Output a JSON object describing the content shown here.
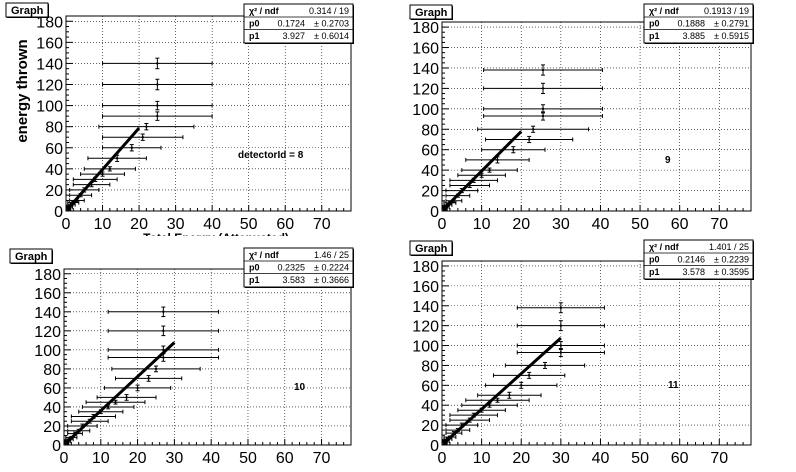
{
  "chart_data": [
    {
      "type": "scatter",
      "title": "Graph",
      "xlabel": "Total Energy (Attenuated)",
      "ylabel": "energy thrown",
      "xlim": [
        0,
        78
      ],
      "ylim": [
        0,
        185
      ],
      "xticks": [
        0,
        10,
        20,
        30,
        40,
        50,
        60,
        70
      ],
      "yticks": [
        0,
        20,
        40,
        60,
        80,
        100,
        120,
        140,
        160,
        180
      ],
      "grid": true,
      "annotation": "detectorId = 8",
      "stats": {
        "chi_label": "χ² / ndf",
        "chi_value": "0.314 / 19",
        "p0_label": "p0",
        "p0_value": "0.1724",
        "p0_err": "± 0.2703",
        "p1_label": "p1",
        "p1_value": "3.927",
        "p1_err": "± 0.6014"
      },
      "fit": {
        "p0": 0.1724,
        "p1": 3.927,
        "x_range": [
          0.5,
          20
        ]
      },
      "points": [
        {
          "x": 25,
          "y": 140,
          "xerr": 15,
          "yerr": 5
        },
        {
          "x": 25,
          "y": 120,
          "xerr": 15,
          "yerr": 5
        },
        {
          "x": 25,
          "y": 100,
          "xerr": 15,
          "yerr": 4
        },
        {
          "x": 25,
          "y": 90,
          "xerr": 15,
          "yerr": 4
        },
        {
          "x": 22,
          "y": 80,
          "xerr": 13,
          "yerr": 3
        },
        {
          "x": 21,
          "y": 70,
          "xerr": 11,
          "yerr": 3
        },
        {
          "x": 18,
          "y": 60,
          "xerr": 8,
          "yerr": 3
        },
        {
          "x": 14,
          "y": 50,
          "xerr": 8,
          "yerr": 3
        },
        {
          "x": 12,
          "y": 40,
          "xerr": 7,
          "yerr": 2
        },
        {
          "x": 10,
          "y": 35,
          "xerr": 6,
          "yerr": 2
        },
        {
          "x": 8,
          "y": 30,
          "xerr": 6,
          "yerr": 2
        },
        {
          "x": 7,
          "y": 25,
          "xerr": 5,
          "yerr": 2
        },
        {
          "x": 5,
          "y": 20,
          "xerr": 4,
          "yerr": 2
        },
        {
          "x": 4,
          "y": 15,
          "xerr": 3,
          "yerr": 1.5
        },
        {
          "x": 3,
          "y": 10,
          "xerr": 2,
          "yerr": 1.5
        },
        {
          "x": 2,
          "y": 8,
          "xerr": 1.5,
          "yerr": 1
        },
        {
          "x": 1.5,
          "y": 6,
          "xerr": 1,
          "yerr": 1
        },
        {
          "x": 1,
          "y": 4,
          "xerr": 0.8,
          "yerr": 1
        },
        {
          "x": 0.8,
          "y": 2,
          "xerr": 0.5,
          "yerr": 1
        }
      ]
    },
    {
      "type": "scatter",
      "title": "Graph",
      "xlabel": "",
      "ylabel": "",
      "xlim": [
        0,
        78
      ],
      "ylim": [
        0,
        185
      ],
      "xticks": [
        0,
        10,
        20,
        30,
        40,
        50,
        60,
        70
      ],
      "yticks": [
        0,
        20,
        40,
        60,
        80,
        100,
        120,
        140,
        160,
        180
      ],
      "grid": true,
      "annotation": "9",
      "stats": {
        "chi_label": "χ² / ndf",
        "chi_value": "0.1913 / 19",
        "p0_label": "p0",
        "p0_value": "0.1888",
        "p0_err": "± 0.2791",
        "p1_label": "p1",
        "p1_value": "3.885",
        "p1_err": "± 0.5915"
      },
      "fit": {
        "p0": 0.1888,
        "p1": 3.885,
        "x_range": [
          0.5,
          20
        ]
      },
      "points": [
        {
          "x": 25.5,
          "y": 138,
          "xerr": 15,
          "yerr": 5
        },
        {
          "x": 25.5,
          "y": 120,
          "xerr": 15,
          "yerr": 5
        },
        {
          "x": 25.5,
          "y": 100,
          "xerr": 15,
          "yerr": 4
        },
        {
          "x": 25.5,
          "y": 93,
          "xerr": 15,
          "yerr": 4
        },
        {
          "x": 23,
          "y": 80,
          "xerr": 14,
          "yerr": 3
        },
        {
          "x": 22,
          "y": 70,
          "xerr": 11,
          "yerr": 3
        },
        {
          "x": 18,
          "y": 60,
          "xerr": 8,
          "yerr": 3
        },
        {
          "x": 14,
          "y": 50,
          "xerr": 8,
          "yerr": 3
        },
        {
          "x": 12,
          "y": 40,
          "xerr": 7,
          "yerr": 2
        },
        {
          "x": 10,
          "y": 35,
          "xerr": 6,
          "yerr": 2
        },
        {
          "x": 8,
          "y": 30,
          "xerr": 6,
          "yerr": 2
        },
        {
          "x": 7,
          "y": 25,
          "xerr": 5,
          "yerr": 2
        },
        {
          "x": 5,
          "y": 20,
          "xerr": 4,
          "yerr": 2
        },
        {
          "x": 4,
          "y": 15,
          "xerr": 3,
          "yerr": 1.5
        },
        {
          "x": 3,
          "y": 10,
          "xerr": 2,
          "yerr": 1.5
        },
        {
          "x": 2,
          "y": 8,
          "xerr": 1.5,
          "yerr": 1
        },
        {
          "x": 1.5,
          "y": 6,
          "xerr": 1,
          "yerr": 1
        },
        {
          "x": 1,
          "y": 4,
          "xerr": 0.8,
          "yerr": 1
        },
        {
          "x": 0.8,
          "y": 2,
          "xerr": 0.5,
          "yerr": 1
        }
      ]
    },
    {
      "type": "scatter",
      "title": "Graph",
      "xlabel": "",
      "ylabel": "",
      "xlim": [
        0,
        78
      ],
      "ylim": [
        0,
        185
      ],
      "xticks": [
        0,
        10,
        20,
        30,
        40,
        50,
        60,
        70
      ],
      "yticks": [
        0,
        20,
        40,
        60,
        80,
        100,
        120,
        140,
        160,
        180
      ],
      "grid": true,
      "annotation": "10",
      "stats": {
        "chi_label": "χ² / ndf",
        "chi_value": "1.46 / 25",
        "p0_label": "p0",
        "p0_value": "0.2325",
        "p0_err": "± 0.2224",
        "p1_label": "p1",
        "p1_value": "3.583",
        "p1_err": "± 0.3666"
      },
      "fit": {
        "p0": 0.2325,
        "p1": 3.583,
        "x_range": [
          0.5,
          30
        ]
      },
      "points": [
        {
          "x": 27,
          "y": 140,
          "xerr": 15,
          "yerr": 5
        },
        {
          "x": 27,
          "y": 120,
          "xerr": 15,
          "yerr": 5
        },
        {
          "x": 27,
          "y": 100,
          "xerr": 15,
          "yerr": 4
        },
        {
          "x": 27,
          "y": 92,
          "xerr": 15,
          "yerr": 4
        },
        {
          "x": 25,
          "y": 80,
          "xerr": 12,
          "yerr": 3
        },
        {
          "x": 23,
          "y": 70,
          "xerr": 9,
          "yerr": 3
        },
        {
          "x": 20,
          "y": 60,
          "xerr": 9,
          "yerr": 3
        },
        {
          "x": 17,
          "y": 50,
          "xerr": 8,
          "yerr": 3
        },
        {
          "x": 14,
          "y": 45,
          "xerr": 8,
          "yerr": 2
        },
        {
          "x": 12,
          "y": 40,
          "xerr": 7,
          "yerr": 2
        },
        {
          "x": 10,
          "y": 35,
          "xerr": 6,
          "yerr": 2
        },
        {
          "x": 8,
          "y": 30,
          "xerr": 6,
          "yerr": 2
        },
        {
          "x": 7,
          "y": 25,
          "xerr": 5,
          "yerr": 2
        },
        {
          "x": 5,
          "y": 20,
          "xerr": 4,
          "yerr": 2
        },
        {
          "x": 4,
          "y": 15,
          "xerr": 3,
          "yerr": 1.5
        },
        {
          "x": 3,
          "y": 12,
          "xerr": 2,
          "yerr": 1.5
        },
        {
          "x": 2,
          "y": 8,
          "xerr": 1.5,
          "yerr": 1
        },
        {
          "x": 1.5,
          "y": 6,
          "xerr": 1,
          "yerr": 1
        },
        {
          "x": 1,
          "y": 4,
          "xerr": 0.8,
          "yerr": 1
        },
        {
          "x": 0.8,
          "y": 2,
          "xerr": 0.5,
          "yerr": 1
        }
      ]
    },
    {
      "type": "scatter",
      "title": "Graph",
      "xlabel": "",
      "ylabel": "",
      "xlim": [
        0,
        78
      ],
      "ylim": [
        0,
        185
      ],
      "xticks": [
        0,
        10,
        20,
        30,
        40,
        50,
        60,
        70
      ],
      "yticks": [
        0,
        20,
        40,
        60,
        80,
        100,
        120,
        140,
        160,
        180
      ],
      "grid": true,
      "annotation": "11",
      "stats": {
        "chi_label": "χ² / ndf",
        "chi_value": "1.401 / 25",
        "p0_label": "p0",
        "p0_value": "0.2146",
        "p0_err": "± 0.2239",
        "p1_label": "p1",
        "p1_value": "3.578",
        "p1_err": "± 0.3595"
      },
      "fit": {
        "p0": 0.2146,
        "p1": 3.578,
        "x_range": [
          0.5,
          30
        ]
      },
      "points": [
        {
          "x": 30,
          "y": 138,
          "xerr": 11,
          "yerr": 5
        },
        {
          "x": 30,
          "y": 120,
          "xerr": 11,
          "yerr": 5
        },
        {
          "x": 30,
          "y": 100,
          "xerr": 11,
          "yerr": 4
        },
        {
          "x": 30,
          "y": 93,
          "xerr": 11,
          "yerr": 4
        },
        {
          "x": 26,
          "y": 80,
          "xerr": 10,
          "yerr": 3
        },
        {
          "x": 22,
          "y": 70,
          "xerr": 9,
          "yerr": 3
        },
        {
          "x": 20,
          "y": 60,
          "xerr": 9,
          "yerr": 3
        },
        {
          "x": 17,
          "y": 50,
          "xerr": 8,
          "yerr": 3
        },
        {
          "x": 14,
          "y": 45,
          "xerr": 8,
          "yerr": 2
        },
        {
          "x": 12,
          "y": 40,
          "xerr": 7,
          "yerr": 2
        },
        {
          "x": 10,
          "y": 35,
          "xerr": 6,
          "yerr": 2
        },
        {
          "x": 8,
          "y": 30,
          "xerr": 6,
          "yerr": 2
        },
        {
          "x": 7,
          "y": 25,
          "xerr": 5,
          "yerr": 2
        },
        {
          "x": 5,
          "y": 20,
          "xerr": 4,
          "yerr": 2
        },
        {
          "x": 4,
          "y": 15,
          "xerr": 3,
          "yerr": 1.5
        },
        {
          "x": 3,
          "y": 12,
          "xerr": 2,
          "yerr": 1.5
        },
        {
          "x": 2,
          "y": 8,
          "xerr": 1.5,
          "yerr": 1
        },
        {
          "x": 1.5,
          "y": 6,
          "xerr": 1,
          "yerr": 1
        },
        {
          "x": 1,
          "y": 4,
          "xerr": 0.8,
          "yerr": 1
        },
        {
          "x": 0.8,
          "y": 2,
          "xerr": 0.5,
          "yerr": 1
        }
      ]
    }
  ]
}
